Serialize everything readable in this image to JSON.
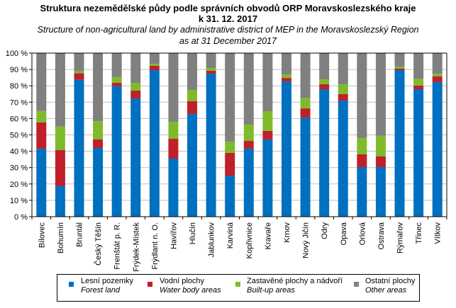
{
  "chart_data": {
    "type": "bar",
    "stacked": true,
    "percent_stacked": true,
    "title": "Struktura nezemědělské půdy podle správních obvodů ORP Moravskoslezského kraje",
    "title_line2": "k 31. 12. 2017",
    "subtitle": "Structure of non-agricultural land by administrative district of MEP in the Moravskoslezský Region",
    "subtitle_line2": "as at 31 December 2017",
    "xlabel": "",
    "ylabel": "",
    "ylim": [
      0,
      100
    ],
    "y_ticks": [
      "0 %",
      "10 %",
      "20 %",
      "30 %",
      "40 %",
      "50 %",
      "60 %",
      "70 %",
      "80 %",
      "90 %",
      "100 %"
    ],
    "grid": true,
    "legend_position": "bottom",
    "categories": [
      "Bílovec",
      "Bohumín",
      "Bruntál",
      "Český Těšín",
      "Frenštát p. R.",
      "Frýdek-Místek",
      "Frýdlant n. O.",
      "Havířov",
      "Hlučín",
      "Jablunkov",
      "Karviná",
      "Kopřivnice",
      "Kravaře",
      "Krnov",
      "Nový Jičín",
      "Odry",
      "Opava",
      "Orlová",
      "Ostrava",
      "Rýmařov",
      "Třinec",
      "Vítkov"
    ],
    "series": [
      {
        "name": "Lesní pozemky",
        "name_en": "Forest land",
        "color": "#0070C0",
        "values": [
          41.6,
          18.8,
          83.7,
          42.0,
          79.8,
          72.3,
          89.6,
          35.5,
          62.8,
          87.4,
          25.1,
          41.6,
          47.2,
          82.7,
          60.6,
          77.9,
          71.0,
          30.3,
          30.3,
          89.6,
          77.9,
          82.3
        ]
      },
      {
        "name": "Vodní plochy",
        "name_en": "Water body areas",
        "color": "#C0202A",
        "values": [
          16.1,
          21.9,
          4.0,
          5.2,
          2.0,
          4.8,
          2.6,
          12.1,
          7.8,
          1.8,
          13.9,
          4.7,
          5.2,
          2.1,
          5.6,
          3.1,
          3.9,
          7.8,
          6.5,
          1.0,
          2.2,
          3.4
        ]
      },
      {
        "name": "Zastavěné plochy a nádvoří",
        "name_en": "Built-up areas",
        "color": "#7FBA2D",
        "values": [
          6.9,
          14.4,
          1.2,
          11.2,
          3.5,
          4.7,
          1.3,
          10.4,
          6.9,
          1.7,
          6.9,
          10.0,
          12.1,
          2.2,
          6.5,
          3.0,
          6.1,
          10.0,
          12.6,
          1.2,
          4.3,
          1.7
        ]
      },
      {
        "name": "Ostatní plochy",
        "name_en": "Other areas",
        "color": "#808080",
        "values": [
          35.4,
          44.9,
          11.1,
          41.6,
          14.7,
          18.2,
          6.5,
          42.0,
          22.5,
          9.1,
          54.1,
          43.7,
          35.5,
          13.0,
          27.3,
          16.0,
          19.0,
          51.9,
          50.6,
          8.2,
          15.6,
          12.6
        ]
      }
    ]
  }
}
